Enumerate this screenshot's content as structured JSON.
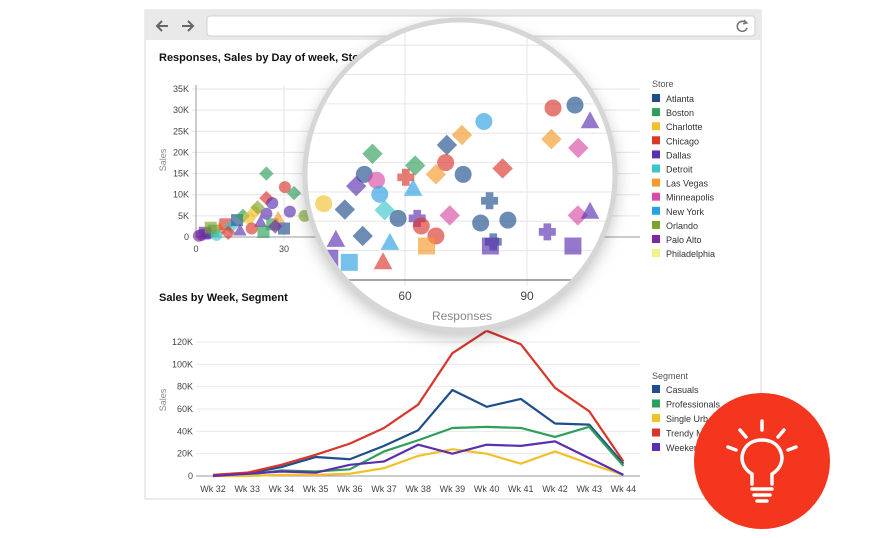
{
  "browser": {
    "back_icon": "arrow-left-icon",
    "forward_icon": "arrow-right-icon",
    "reload_icon": "reload-icon",
    "address": ""
  },
  "badge": {
    "icon": "lightbulb-icon",
    "color": "#f4361e"
  },
  "chart_data": [
    {
      "type": "scatter",
      "title": "Responses, Sales by Day of week, Store, S",
      "xlabel": "Responses",
      "ylabel": "Sales",
      "xlim": [
        0,
        120
      ],
      "ylim": [
        0,
        35000
      ],
      "x_ticks": [
        "0",
        "30",
        "60",
        "90"
      ],
      "y_ticks": [
        "0",
        "5K",
        "10K",
        "15K",
        "20K",
        "25K",
        "30K",
        "35K"
      ],
      "grid": true,
      "legend_title": "Store",
      "legend_position": "right",
      "stores": [
        {
          "name": "Atlanta",
          "color": "#1f4e8c"
        },
        {
          "name": "Boston",
          "color": "#2e9e5b"
        },
        {
          "name": "Charlotte",
          "color": "#f0c12b"
        },
        {
          "name": "Chicago",
          "color": "#d9352b"
        },
        {
          "name": "Dallas",
          "color": "#5b2fb0"
        },
        {
          "name": "Detroit",
          "color": "#3cc6c9"
        },
        {
          "name": "Las Vegas",
          "color": "#f39a2b"
        },
        {
          "name": "Minneapolis",
          "color": "#d94ca3"
        },
        {
          "name": "New York",
          "color": "#2ba0e0"
        },
        {
          "name": "Orlando",
          "color": "#7ea32a"
        },
        {
          "name": "Palo Alto",
          "color": "#7a2a9a"
        },
        {
          "name": "Philadelphia",
          "color": "#f5f08a"
        }
      ],
      "points_fields": [
        "responses",
        "sales",
        "store_index",
        "shape"
      ],
      "points": [
        [
          96.4,
          29300,
          3,
          "c"
        ],
        [
          101.8,
          29800,
          0,
          "c"
        ],
        [
          105.5,
          27000,
          4,
          "t"
        ],
        [
          79.4,
          27000,
          8,
          "c"
        ],
        [
          74,
          24700,
          6,
          "d"
        ],
        [
          96,
          24000,
          6,
          "d"
        ],
        [
          70.3,
          23000,
          0,
          "d"
        ],
        [
          102.6,
          22500,
          7,
          "d"
        ],
        [
          52,
          21500,
          1,
          "d"
        ],
        [
          70,
          20000,
          3,
          "c"
        ],
        [
          84,
          19000,
          3,
          "d"
        ],
        [
          62.5,
          19500,
          1,
          "d"
        ],
        [
          74.3,
          18000,
          0,
          "c"
        ],
        [
          67.6,
          18000,
          6,
          "d"
        ],
        [
          50,
          18000,
          0,
          "c"
        ],
        [
          53,
          17000,
          7,
          "c"
        ],
        [
          48,
          16000,
          4,
          "d"
        ],
        [
          60.2,
          17500,
          3,
          "p"
        ],
        [
          62,
          15500,
          8,
          "t"
        ],
        [
          53.8,
          14600,
          8,
          "c"
        ],
        [
          80.8,
          13500,
          0,
          "p"
        ],
        [
          40,
          13000,
          2,
          "c"
        ],
        [
          45.2,
          12000,
          0,
          "d"
        ],
        [
          55,
          11900,
          5,
          "d"
        ],
        [
          58.3,
          10500,
          0,
          "c"
        ],
        [
          63,
          10500,
          4,
          "p"
        ],
        [
          71,
          11000,
          7,
          "d"
        ],
        [
          78.6,
          9700,
          0,
          "c"
        ],
        [
          85.3,
          10200,
          0,
          "c"
        ],
        [
          102.5,
          11000,
          7,
          "d"
        ],
        [
          105.5,
          11600,
          4,
          "t"
        ],
        [
          64,
          9200,
          3,
          "c"
        ],
        [
          67.6,
          7500,
          3,
          "c"
        ],
        [
          49.6,
          7500,
          0,
          "d"
        ],
        [
          95,
          8200,
          4,
          "p"
        ],
        [
          81.7,
          6500,
          0,
          "p"
        ],
        [
          56.3,
          6300,
          8,
          "t"
        ],
        [
          101.3,
          5800,
          4,
          "s"
        ],
        [
          81,
          5800,
          4,
          "s"
        ],
        [
          65.3,
          5800,
          6,
          "s"
        ],
        [
          46.3,
          3000,
          8,
          "s"
        ],
        [
          41.5,
          3700,
          4,
          "s"
        ],
        [
          54.6,
          3000,
          3,
          "t"
        ],
        [
          43,
          6800,
          4,
          "t"
        ],
        [
          37,
          5000,
          9,
          "c"
        ],
        [
          24,
          15000,
          1,
          "d"
        ],
        [
          30.3,
          11800,
          3,
          "c"
        ],
        [
          24,
          9200,
          3,
          "d"
        ],
        [
          33.4,
          10400,
          1,
          "d"
        ],
        [
          2,
          500,
          4,
          "c"
        ],
        [
          4,
          800,
          10,
          "c"
        ],
        [
          6,
          1500,
          1,
          "s"
        ],
        [
          8,
          2000,
          6,
          "t"
        ],
        [
          10,
          3000,
          3,
          "s"
        ],
        [
          12,
          2500,
          5,
          "d"
        ],
        [
          14,
          4000,
          0,
          "s"
        ],
        [
          16,
          5000,
          1,
          "d"
        ],
        [
          18,
          4500,
          2,
          "c"
        ],
        [
          20,
          6000,
          2,
          "d"
        ],
        [
          22,
          3500,
          4,
          "t"
        ],
        [
          24,
          5500,
          4,
          "c"
        ],
        [
          26,
          3000,
          1,
          "s"
        ],
        [
          28,
          4500,
          6,
          "t"
        ],
        [
          30,
          2000,
          0,
          "s"
        ],
        [
          32,
          6000,
          4,
          "c"
        ],
        [
          3,
          1000,
          4,
          "s"
        ],
        [
          7,
          500,
          5,
          "c"
        ],
        [
          11,
          1000,
          3,
          "d"
        ],
        [
          15,
          1500,
          4,
          "t"
        ],
        [
          19,
          2000,
          3,
          "c"
        ],
        [
          23,
          1200,
          1,
          "s"
        ],
        [
          27,
          2500,
          10,
          "d"
        ],
        [
          1,
          300,
          10,
          "c"
        ],
        [
          5,
          2200,
          9,
          "s"
        ],
        [
          21,
          7000,
          9,
          "d"
        ],
        [
          26,
          8000,
          4,
          "c"
        ]
      ]
    },
    {
      "type": "line",
      "title": "Sales by Week, Segment",
      "xlabel": "",
      "ylabel": "Sales",
      "ylim": [
        0,
        120000
      ],
      "y_ticks": [
        "0",
        "20K",
        "40K",
        "60K",
        "80K",
        "100K",
        "120K"
      ],
      "categories": [
        "Wk 32",
        "Wk 33",
        "Wk 34",
        "Wk 35",
        "Wk 36",
        "Wk 37",
        "Wk 38",
        "Wk 39",
        "Wk 40",
        "Wk 41",
        "Wk 42",
        "Wk 43",
        "Wk 44"
      ],
      "grid": true,
      "legend_title": "Segment",
      "legend_position": "right",
      "series": [
        {
          "name": "Casuals",
          "color": "#1f4e8c",
          "values": [
            0,
            2000,
            8000,
            17000,
            15000,
            27000,
            41000,
            77000,
            62000,
            69000,
            47000,
            46000,
            11000
          ]
        },
        {
          "name": "Professionals",
          "color": "#2e9e5b",
          "values": [
            0,
            1000,
            5000,
            4000,
            6000,
            22000,
            32000,
            43000,
            44000,
            43000,
            35000,
            44000,
            9000
          ]
        },
        {
          "name": "Single Urb",
          "color": "#f0c12b",
          "values": [
            0,
            0,
            1000,
            1000,
            2000,
            7000,
            18000,
            24000,
            20000,
            11000,
            22000,
            11000,
            1000
          ]
        },
        {
          "name": "Trendy M",
          "color": "#d9352b",
          "values": [
            1000,
            3000,
            10000,
            19000,
            29000,
            43000,
            64000,
            110000,
            130000,
            118000,
            79000,
            58000,
            13000
          ]
        },
        {
          "name": "Weeken",
          "color": "#5b2fb0",
          "values": [
            0,
            2000,
            4000,
            3000,
            10000,
            13000,
            28000,
            20000,
            28000,
            27000,
            31000,
            16000,
            1000
          ]
        }
      ]
    }
  ]
}
